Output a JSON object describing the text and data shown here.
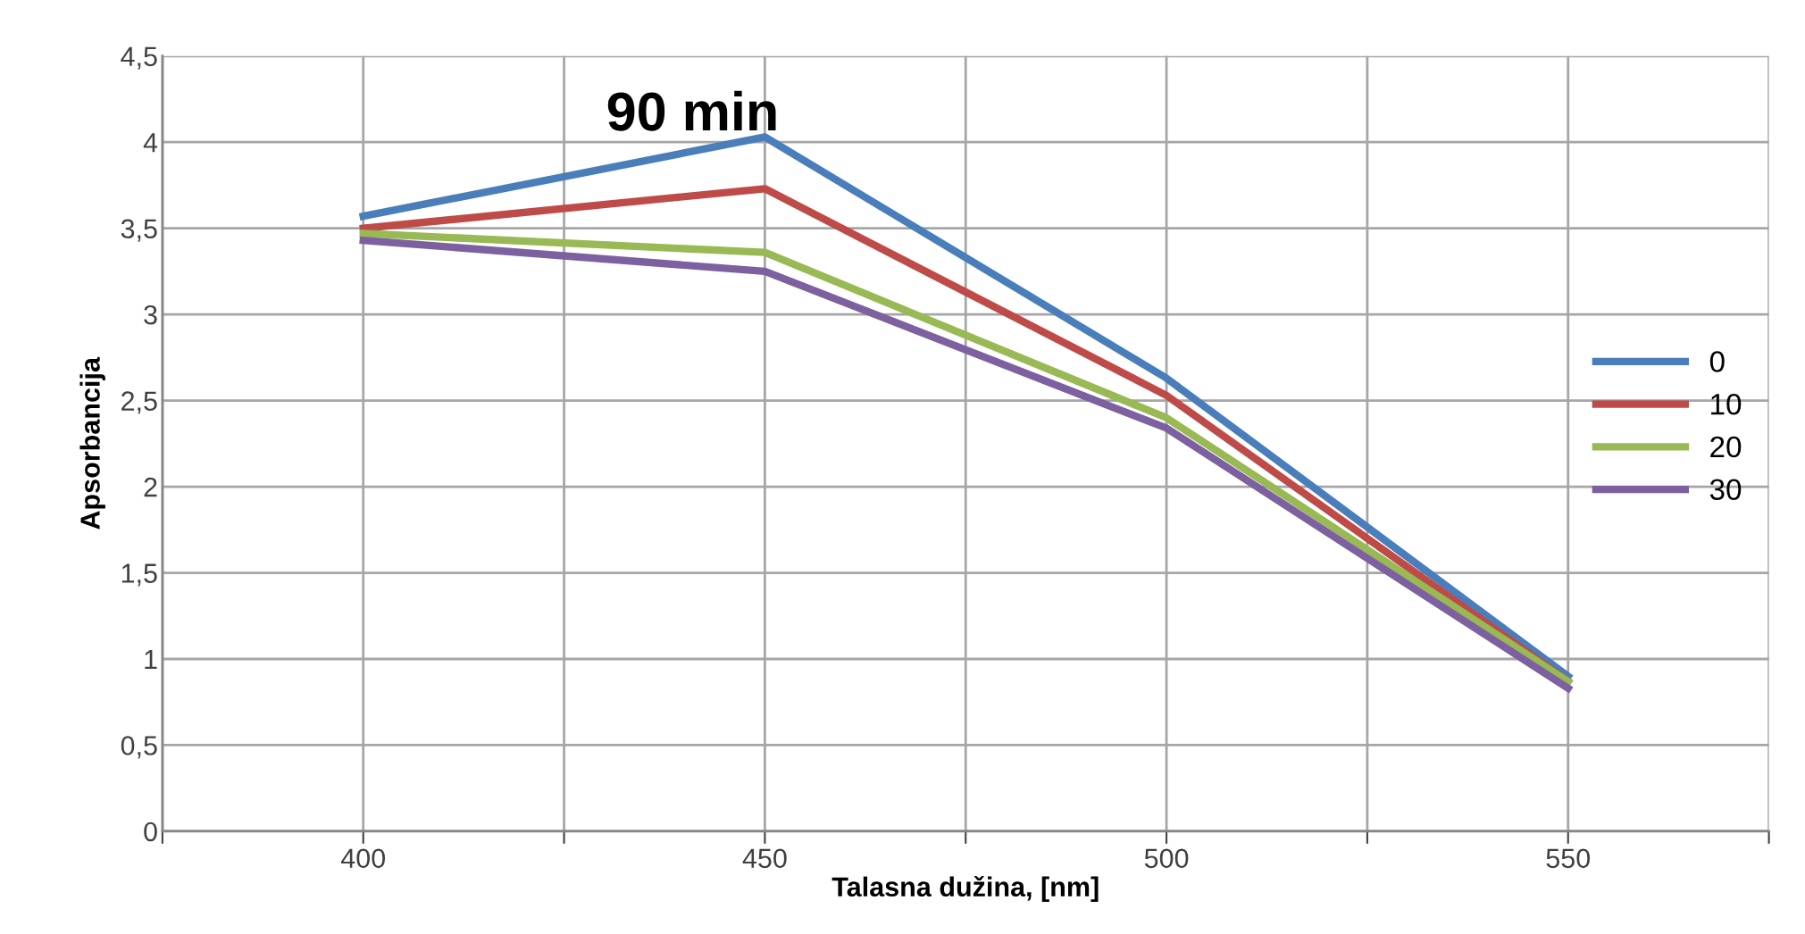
{
  "chart_data": {
    "type": "line",
    "title": "90 min",
    "xlabel": "Talasna dužina, [nm]",
    "ylabel": "Apsorbancija",
    "x": [
      400,
      450,
      500,
      550
    ],
    "series": [
      {
        "name": "0",
        "color": "#4a7ebb",
        "values": [
          3.57,
          4.03,
          2.63,
          0.9
        ]
      },
      {
        "name": "10",
        "color": "#be4b48",
        "values": [
          3.5,
          3.73,
          2.53,
          0.87
        ]
      },
      {
        "name": "20",
        "color": "#98b954",
        "values": [
          3.47,
          3.36,
          2.4,
          0.87
        ]
      },
      {
        "name": "30",
        "color": "#7d60a0",
        "values": [
          3.43,
          3.25,
          2.34,
          0.83
        ]
      }
    ],
    "xlim": [
      375,
      575
    ],
    "xticks": [
      {
        "value": 375,
        "label": null
      },
      400,
      {
        "value": 425,
        "label": null
      },
      450,
      {
        "value": 475,
        "label": null
      },
      500,
      {
        "value": 525,
        "label": null
      },
      550,
      {
        "value": 575,
        "label": null
      }
    ],
    "ylim": [
      0,
      4.5
    ],
    "yticks": [
      0,
      {
        "value": 0.5,
        "label": "0,5"
      },
      1,
      {
        "value": 1.5,
        "label": "1,5"
      },
      2,
      {
        "value": 2.5,
        "label": "2,5"
      },
      3,
      {
        "value": 3.5,
        "label": "3,5"
      },
      4,
      {
        "value": 4.5,
        "label": "4,5"
      }
    ],
    "grid": true,
    "legend": "right",
    "marker": "none",
    "line_style": "solid"
  }
}
